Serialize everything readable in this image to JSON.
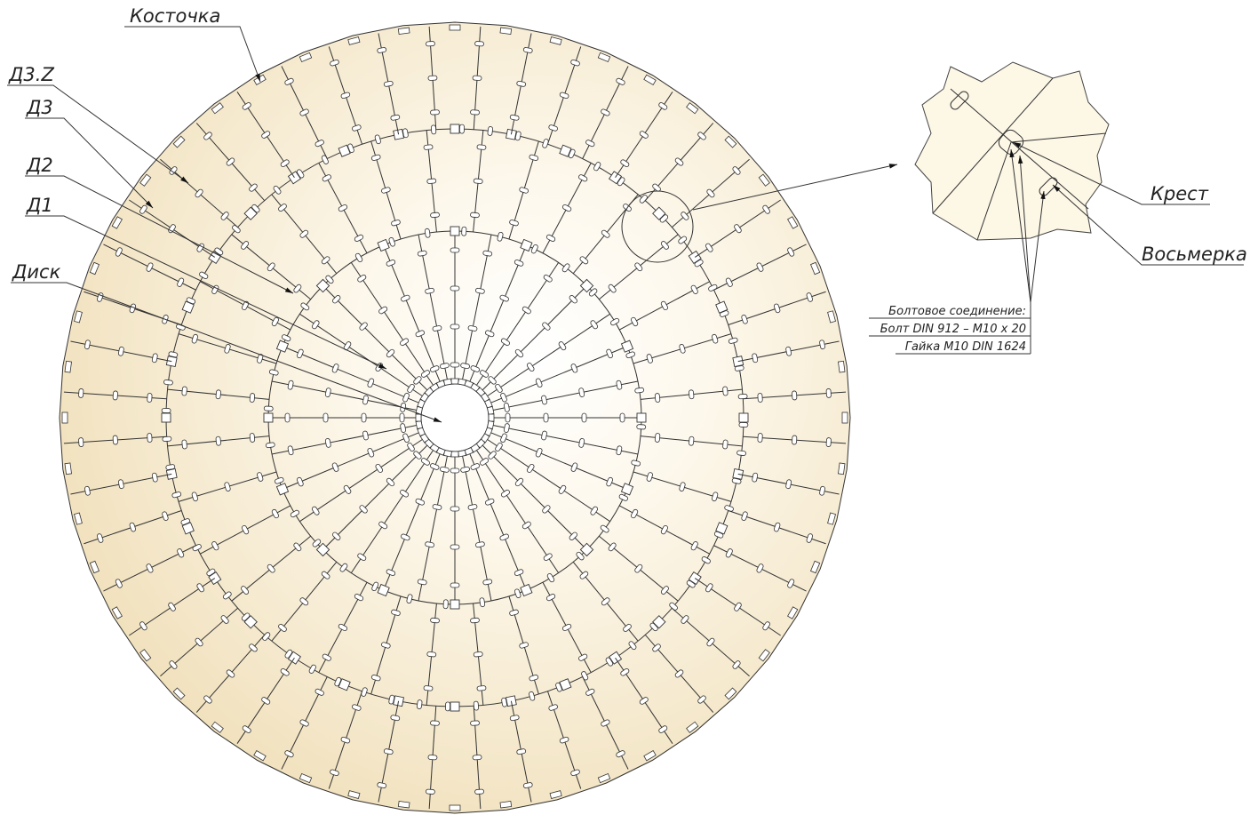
{
  "labels": {
    "kostochka": "Косточка",
    "d3z": "Д3.Z",
    "d3": "Д3",
    "d2": "Д2",
    "d1": "Д1",
    "disk": "Диск",
    "krest": "Крест",
    "vosmerka": "Восьмерка"
  },
  "bolt_note": {
    "title": "Болтовое соединение:",
    "bolt": "Болт DIN 912 – M10 x 20",
    "nut": "Гайка M10 DIN 1624"
  }
}
